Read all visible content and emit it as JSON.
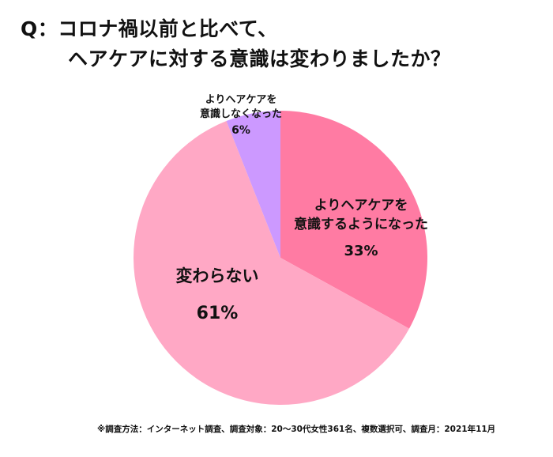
{
  "title": {
    "line1": "Q：コロナ禍以前と比べて、",
    "line2": "ヘアケアに対する意識は変わりましたか？"
  },
  "chart_data": {
    "type": "pie",
    "title": "Q：コロナ禍以前と比べて、ヘアケアに対する意識は変わりましたか？",
    "start_angle": "12 o'clock, clockwise",
    "slices": [
      {
        "label": "よりヘアケアを意識するようになった",
        "label_line1": "よりヘアケアを",
        "label_line2": "意識するようになった",
        "value": 33,
        "display": "33%",
        "color": "#FF7BA3"
      },
      {
        "label": "変わらない",
        "value": 61,
        "display": "61%",
        "color": "#FFA8C5"
      },
      {
        "label": "よりヘアケアを意識しなくなった",
        "label_line1": "よりヘアケアを",
        "label_line2": "意識しなくなった",
        "value": 6,
        "display": "6%",
        "color": "#CC99FF"
      }
    ],
    "legend": "none (labels on slices)"
  },
  "footnote": "※調査方法：インターネット調査、調査対象：20～30代女性361名、複数選択可、調査月：2021年11月"
}
